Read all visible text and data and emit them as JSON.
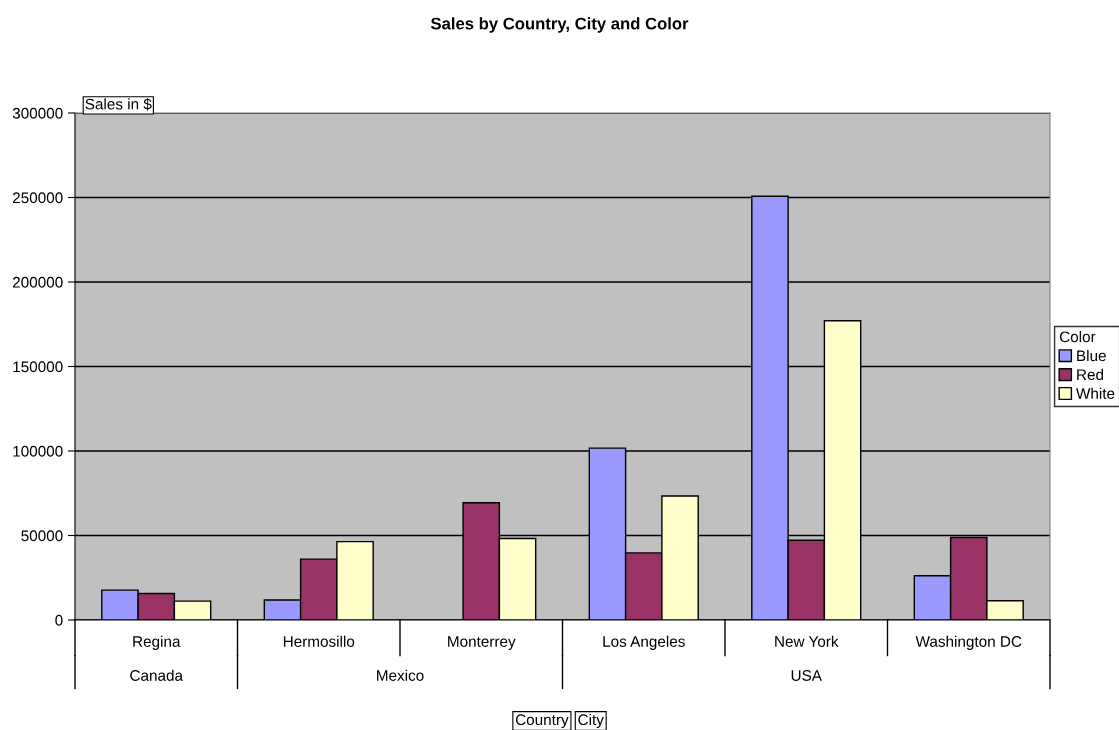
{
  "chart_data": {
    "type": "bar",
    "title": "Sales by Country, City and Color",
    "ylabel": "Sales in $",
    "legend_title": "Color",
    "categories": [
      "Regina",
      "Hermosillo",
      "Monterrey",
      "Los Angeles",
      "New York",
      "Washington DC"
    ],
    "series": [
      {
        "name": "Blue",
        "color": "#9999ff",
        "values": [
          17700,
          11800,
          null,
          101700,
          250700,
          26200
        ]
      },
      {
        "name": "Red",
        "color": "#993366",
        "values": [
          15700,
          36000,
          69400,
          39700,
          47200,
          48800
        ]
      },
      {
        "name": "White",
        "color": "#ffffcc",
        "values": [
          11200,
          46400,
          48200,
          73400,
          177100,
          11400
        ]
      }
    ],
    "ylim": [
      0,
      300000
    ],
    "yticks": [
      0,
      50000,
      100000,
      150000,
      200000,
      250000,
      300000
    ],
    "grid": "y",
    "legend": "right",
    "annotations": [
      "Canada",
      "Mexico",
      "USA",
      "Country",
      "City"
    ]
  }
}
